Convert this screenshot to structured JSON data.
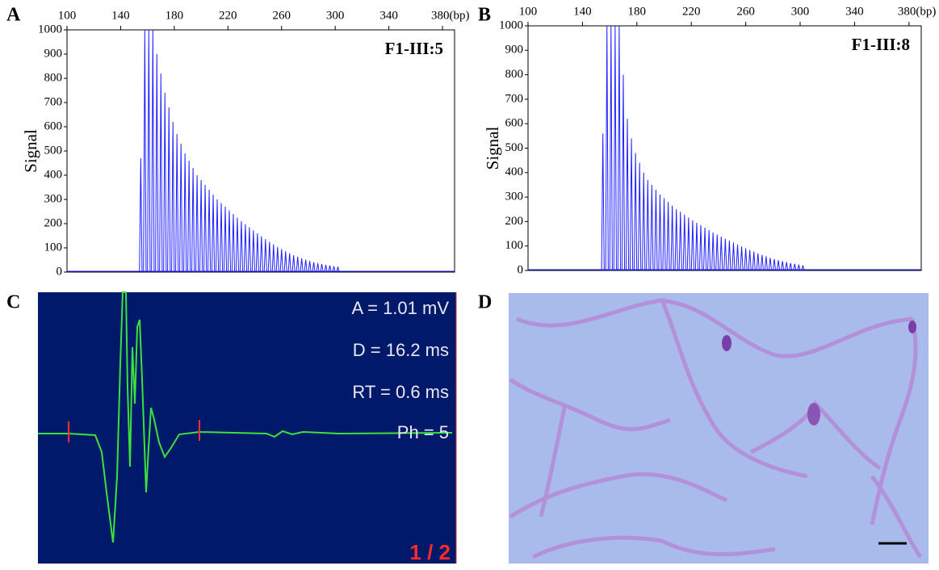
{
  "chart_data": [
    {
      "type": "peaks",
      "panel": "A",
      "annotation": "F1-III:5",
      "ylabel": "Signal",
      "color": "#1f1fff",
      "xlim": [
        100,
        389
      ],
      "xticks": [
        100,
        140,
        180,
        220,
        260,
        300,
        340,
        {
          "value": 380,
          "label": "380(bp)"
        }
      ],
      "ylim": [
        0,
        1000
      ],
      "yticks": [
        0,
        100,
        200,
        300,
        400,
        500,
        600,
        700,
        800,
        900,
        1000
      ],
      "x": [
        155,
        158,
        161,
        164,
        167,
        170,
        173,
        176,
        179,
        182,
        185,
        188,
        191,
        194,
        197,
        200,
        203,
        206,
        209,
        212,
        215,
        218,
        221,
        224,
        227,
        230,
        233,
        236,
        239,
        242,
        245,
        248,
        251,
        254,
        257,
        260,
        263,
        266,
        269,
        272,
        275,
        278,
        281,
        284,
        287,
        290,
        293,
        296,
        299,
        302
      ],
      "values": [
        470,
        1000,
        1000,
        1000,
        900,
        820,
        740,
        680,
        620,
        570,
        530,
        490,
        460,
        430,
        400,
        380,
        360,
        340,
        320,
        300,
        285,
        270,
        255,
        240,
        225,
        210,
        198,
        185,
        172,
        160,
        148,
        136,
        125,
        114,
        104,
        95,
        86,
        78,
        70,
        63,
        57,
        51,
        46,
        41,
        37,
        33,
        30,
        27,
        24,
        22
      ]
    },
    {
      "type": "peaks",
      "panel": "B",
      "annotation": "F1-III:8",
      "ylabel": "Signal",
      "color": "#1f1fff",
      "xlim": [
        100,
        389
      ],
      "xticks": [
        100,
        140,
        180,
        220,
        260,
        300,
        340,
        {
          "value": 380,
          "label": "380(bp)"
        }
      ],
      "ylim": [
        0,
        1000
      ],
      "yticks": [
        0,
        100,
        200,
        300,
        400,
        500,
        600,
        700,
        800,
        900,
        1000
      ],
      "x": [
        155,
        158,
        161,
        164,
        167,
        170,
        173,
        176,
        179,
        182,
        185,
        188,
        191,
        194,
        197,
        200,
        203,
        206,
        209,
        212,
        215,
        218,
        221,
        224,
        227,
        230,
        233,
        236,
        239,
        242,
        245,
        248,
        251,
        254,
        257,
        260,
        263,
        266,
        269,
        272,
        275,
        278,
        281,
        284,
        287,
        290,
        293,
        296,
        299,
        302
      ],
      "values": [
        560,
        1000,
        1000,
        1000,
        1000,
        800,
        620,
        540,
        480,
        440,
        400,
        370,
        350,
        330,
        310,
        295,
        280,
        265,
        250,
        240,
        228,
        216,
        205,
        195,
        185,
        175,
        165,
        156,
        147,
        138,
        130,
        122,
        114,
        106,
        98,
        91,
        84,
        77,
        70,
        64,
        58,
        52,
        47,
        42,
        38,
        34,
        30,
        27,
        24,
        21
      ]
    }
  ],
  "panel_c": {
    "panel": "C",
    "annotations": [
      "A = 1.01 mV",
      "D = 16.2 ms",
      "RT = 0.6 ms",
      "Ph = 5"
    ],
    "page": "1 / 2"
  },
  "panel_d": {
    "panel": "D"
  }
}
